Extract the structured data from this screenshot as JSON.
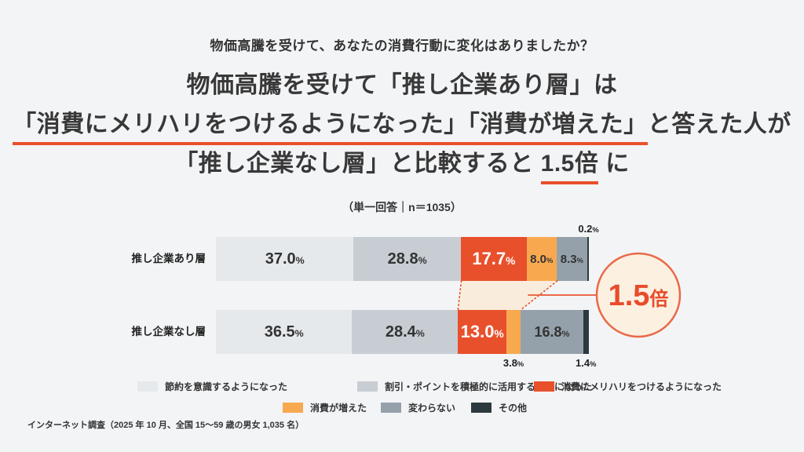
{
  "page": {
    "background": "#f3f4f6"
  },
  "header": {
    "question": "物価高騰を受けて、あなたの消費行動に変化はありましたか？",
    "title": {
      "line1": "物価高騰を受けて「推し企業あり層」は",
      "line2_underlined": "「消費にメリハリをつけるようになった」「消費が増えた」",
      "line2_rest": "と答えた人が",
      "line3_pre": "「推し企業なし層」と比較すると ",
      "line3_highlight": "1.5倍",
      "line3_post": " に"
    }
  },
  "chart_data": {
    "type": "bar",
    "orientation": "horizontal",
    "stacked": true,
    "subtitle": "（単一回答｜n＝1035）",
    "unit": "%",
    "xlim": [
      0,
      100
    ],
    "grid": false,
    "legend_position": "bottom",
    "categories": [
      "推し企業あり層",
      "推し企業なし層"
    ],
    "series": [
      {
        "name": "節約を意識するようになった",
        "color": "#e6e9ec",
        "values": [
          37.0,
          36.5
        ]
      },
      {
        "name": "割引・ポイントを積極的に活用するようになった",
        "color": "#c7cdd3",
        "values": [
          28.8,
          28.4
        ]
      },
      {
        "name": "消費にメリハリをつけるようになった",
        "color": "#e8502c",
        "values": [
          17.7,
          13.0
        ]
      },
      {
        "name": "消費が増えた",
        "color": "#f8a94f",
        "values": [
          8.0,
          3.8
        ]
      },
      {
        "name": "変わらない",
        "color": "#95a1aa",
        "values": [
          8.3,
          16.8
        ]
      },
      {
        "name": "その他",
        "color": "#2c3a3f",
        "values": [
          0.2,
          1.4
        ]
      }
    ],
    "annotation": {
      "number": "1.5",
      "suffix": "倍",
      "fill": "#fcf0e1",
      "stroke": "#ea6a49",
      "text_color": "#e84c2b"
    },
    "highlight_band": {
      "fill": "#faecdc",
      "stroke": "#e8502c",
      "connects_series": [
        2,
        3
      ]
    },
    "legend_rows": [
      [
        0,
        1,
        2
      ],
      [
        3,
        4,
        5
      ]
    ]
  },
  "footer": {
    "source": "インターネット調査（2025 年 10 月、全国 15〜59 歳の男女 1,035 名）"
  }
}
